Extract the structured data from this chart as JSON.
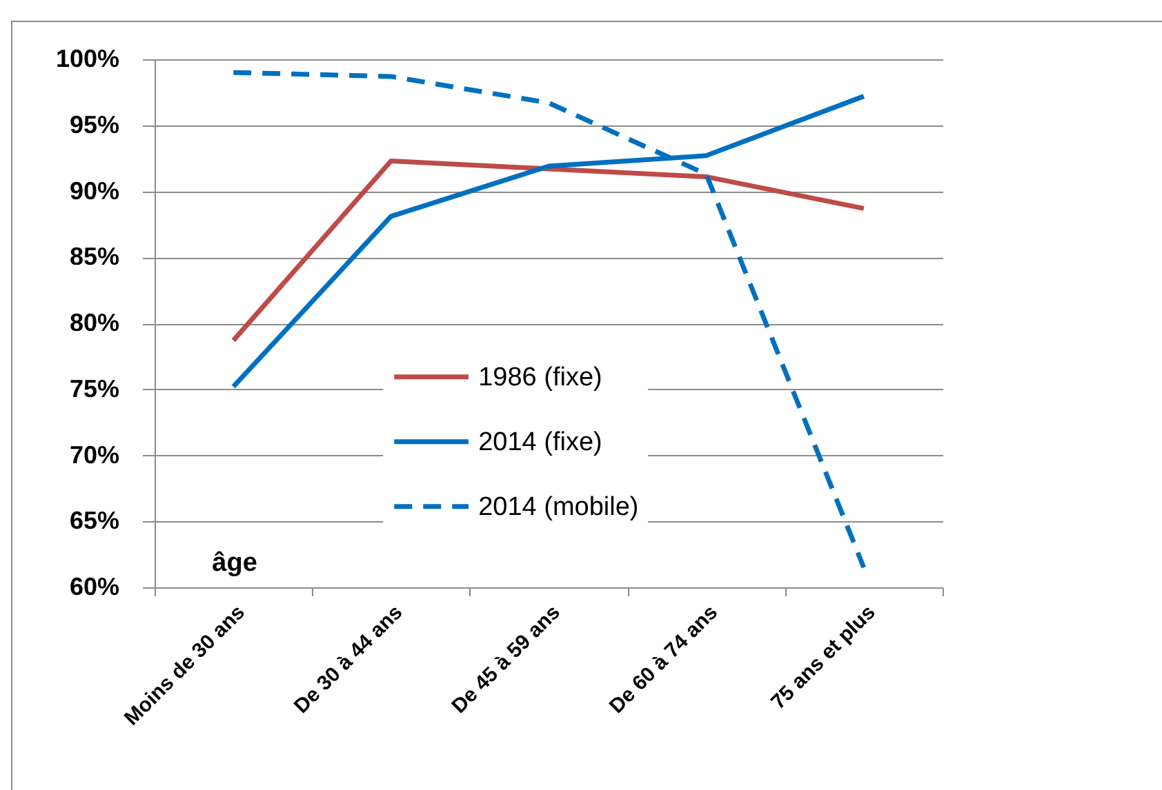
{
  "chart_data": {
    "type": "line",
    "categories": [
      "Moins de 30 ans",
      "De 30 à 44 ans",
      "De 45 à 59 ans",
      "De 60 à 74 ans",
      "75 ans et plus"
    ],
    "series": [
      {
        "name": "1986 (fixe)",
        "color": "#be4b48",
        "line_style": "solid",
        "values": [
          78.7,
          92.3,
          91.7,
          91.1,
          88.7
        ]
      },
      {
        "name": "2014 (fixe)",
        "color": "#0070c0",
        "line_style": "solid",
        "values": [
          75.2,
          88.1,
          91.9,
          92.7,
          97.2
        ]
      },
      {
        "name": "2014 (mobile)",
        "color": "#0070c0",
        "line_style": "dashed",
        "values": [
          99.0,
          98.7,
          96.7,
          91.3,
          61.5
        ]
      }
    ],
    "ylim": [
      60,
      100
    ],
    "yticks": [
      {
        "value": 60,
        "label": "60%"
      },
      {
        "value": 65,
        "label": "65%"
      },
      {
        "value": 70,
        "label": "70%"
      },
      {
        "value": 75,
        "label": "75%"
      },
      {
        "value": 80,
        "label": "80%"
      },
      {
        "value": 85,
        "label": "85%"
      },
      {
        "value": 90,
        "label": "90%"
      },
      {
        "value": 95,
        "label": "95%"
      },
      {
        "value": 100,
        "label": "100%"
      }
    ],
    "grid": "y",
    "legend": "bottom",
    "annotations": [
      "âge"
    ]
  }
}
